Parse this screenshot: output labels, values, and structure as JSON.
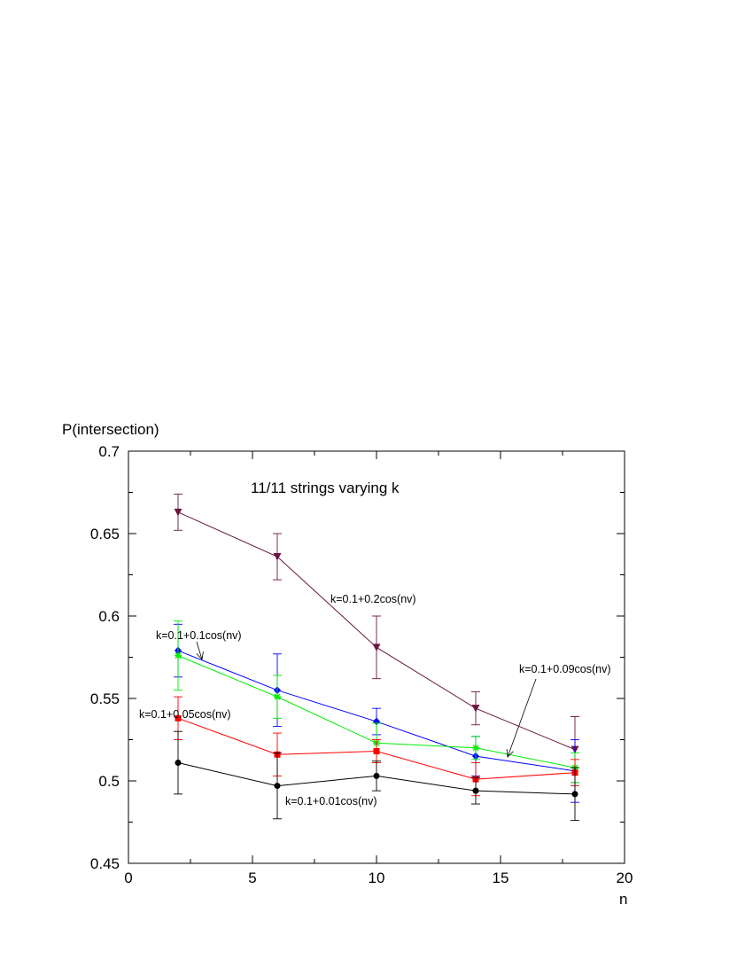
{
  "chart_data": {
    "type": "line",
    "title": "11/11 strings varying k",
    "xlabel": "n",
    "ylabel": "P(intersection)",
    "xlim": [
      0,
      20
    ],
    "ylim": [
      0.45,
      0.7
    ],
    "xticks": [
      0,
      5,
      10,
      15,
      20
    ],
    "yticks": [
      0.45,
      0.5,
      0.55,
      0.6,
      0.65,
      0.7
    ],
    "xtick_labels": [
      "0",
      "5",
      "10",
      "15",
      "20"
    ],
    "ytick_labels": [
      "0.45",
      "0.5",
      "0.55",
      "0.6",
      "0.65",
      "0.7"
    ],
    "grid": false,
    "x": [
      2,
      6,
      10,
      14,
      18
    ],
    "series": [
      {
        "name": "k=0.1+0.2cos(nv)",
        "color": "#6b1540",
        "marker": "triangle-down",
        "values": [
          0.663,
          0.636,
          0.581,
          0.544,
          0.519
        ],
        "errors": [
          0.011,
          0.014,
          0.019,
          0.01,
          0.02
        ]
      },
      {
        "name": "k=0.1+0.1cos(nv)",
        "color": "#0000ff",
        "marker": "diamond",
        "values": [
          0.579,
          0.555,
          0.536,
          0.515,
          0.506
        ],
        "errors": [
          0.016,
          0.022,
          0.008,
          0.012,
          0.019
        ]
      },
      {
        "name": "k=0.1+0.09cos(nv)",
        "color": "#00ee00",
        "marker": "star",
        "values": [
          0.576,
          0.551,
          0.523,
          0.52,
          0.508
        ],
        "errors": [
          0.021,
          0.013,
          0.012,
          0.007,
          0.009
        ]
      },
      {
        "name": "k=0.1+0.05cos(nv)",
        "color": "#ff0000",
        "marker": "square",
        "values": [
          0.538,
          0.516,
          0.518,
          0.501,
          0.505
        ],
        "errors": [
          0.013,
          0.013,
          0.007,
          0.01,
          0.008
        ]
      },
      {
        "name": "k=0.1+0.01cos(nv)",
        "color": "#000000",
        "marker": "circle",
        "values": [
          0.511,
          0.497,
          0.503,
          0.494,
          0.492
        ],
        "errors": [
          0.019,
          0.02,
          0.009,
          0.008,
          0.016
        ]
      }
    ],
    "annotations": [
      {
        "text": "k=0.1+0.2cos(nv)",
        "series": 0,
        "arrow": false
      },
      {
        "text": "k=0.1+0.1cos(nv)",
        "series": 1,
        "arrow": true
      },
      {
        "text": "k=0.1+0.09cos(nv)",
        "series": 2,
        "arrow": true
      },
      {
        "text": "k=0.1+0.05cos(nv)",
        "series": 3,
        "arrow": false
      },
      {
        "text": "k=0.1+0.01cos(nv)",
        "series": 4,
        "arrow": false
      }
    ]
  }
}
